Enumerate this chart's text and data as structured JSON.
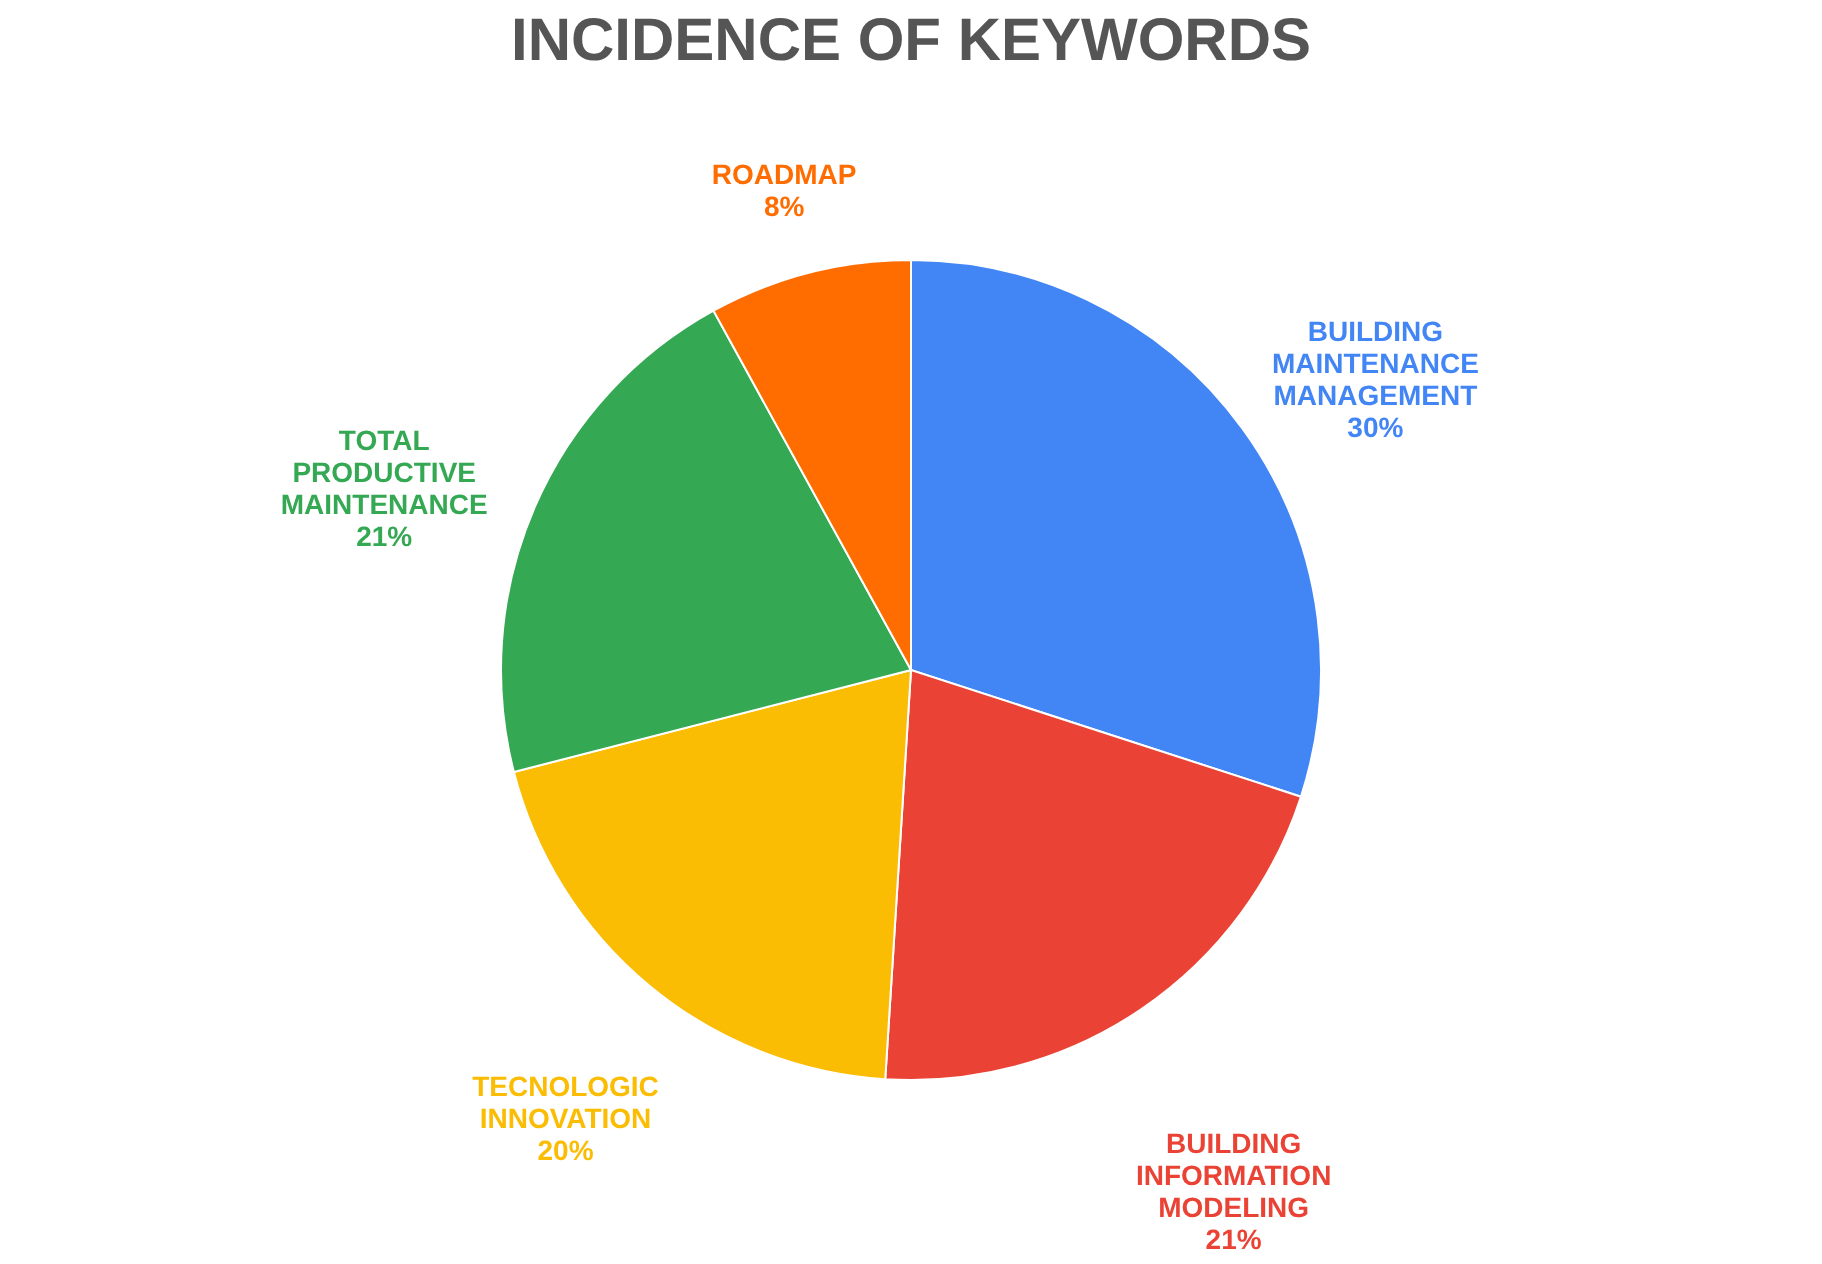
{
  "chart_data": {
    "type": "pie",
    "title": "INCIDENCE OF KEYWORDS",
    "categories": [
      "BUILDING MAINTENANCE MANAGEMENT",
      "BUILDING INFORMATION MODELING",
      "TECNOLOGIC INNOVATION",
      "TOTAL PRODUCTIVE MAINTENANCE",
      "ROADMAP"
    ],
    "values": [
      30,
      21,
      20,
      21,
      8
    ],
    "colors": [
      "#4285f4",
      "#ea4335",
      "#fbbc04",
      "#34a853",
      "#ff6d01"
    ],
    "value_labels": [
      "30%",
      "21%",
      "20%",
      "21%",
      "8%"
    ],
    "legend": false
  }
}
